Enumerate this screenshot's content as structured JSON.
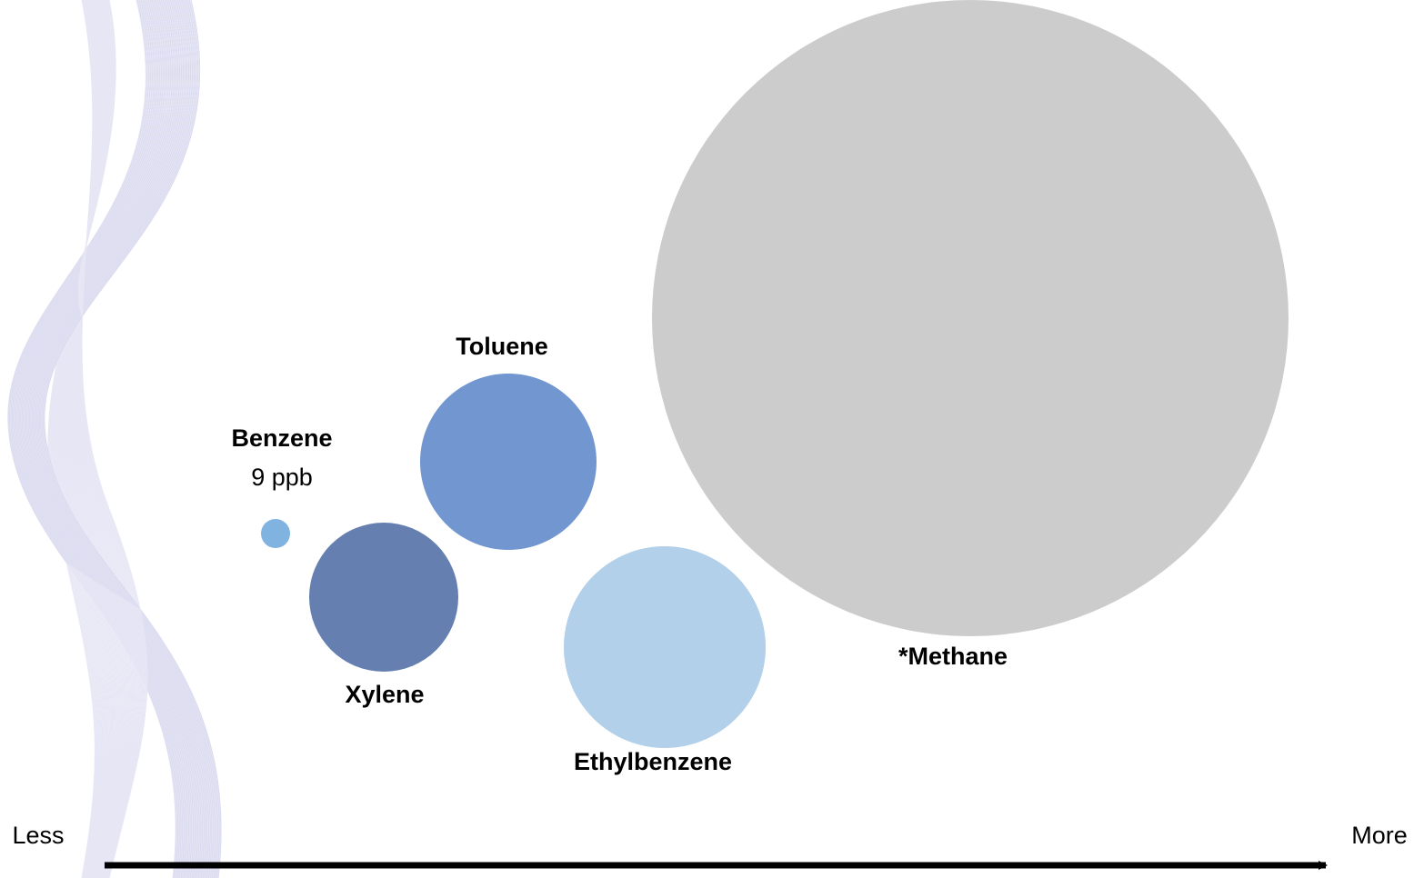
{
  "nodes": [
    {
      "label": "Benzene",
      "note": "9 ppb"
    },
    {
      "label": "Xylene"
    },
    {
      "label": "Toluene"
    },
    {
      "label": "Ethylbenzene"
    },
    {
      "label": "*Methane"
    }
  ],
  "scale": {
    "left": "Less",
    "right": "More"
  }
}
